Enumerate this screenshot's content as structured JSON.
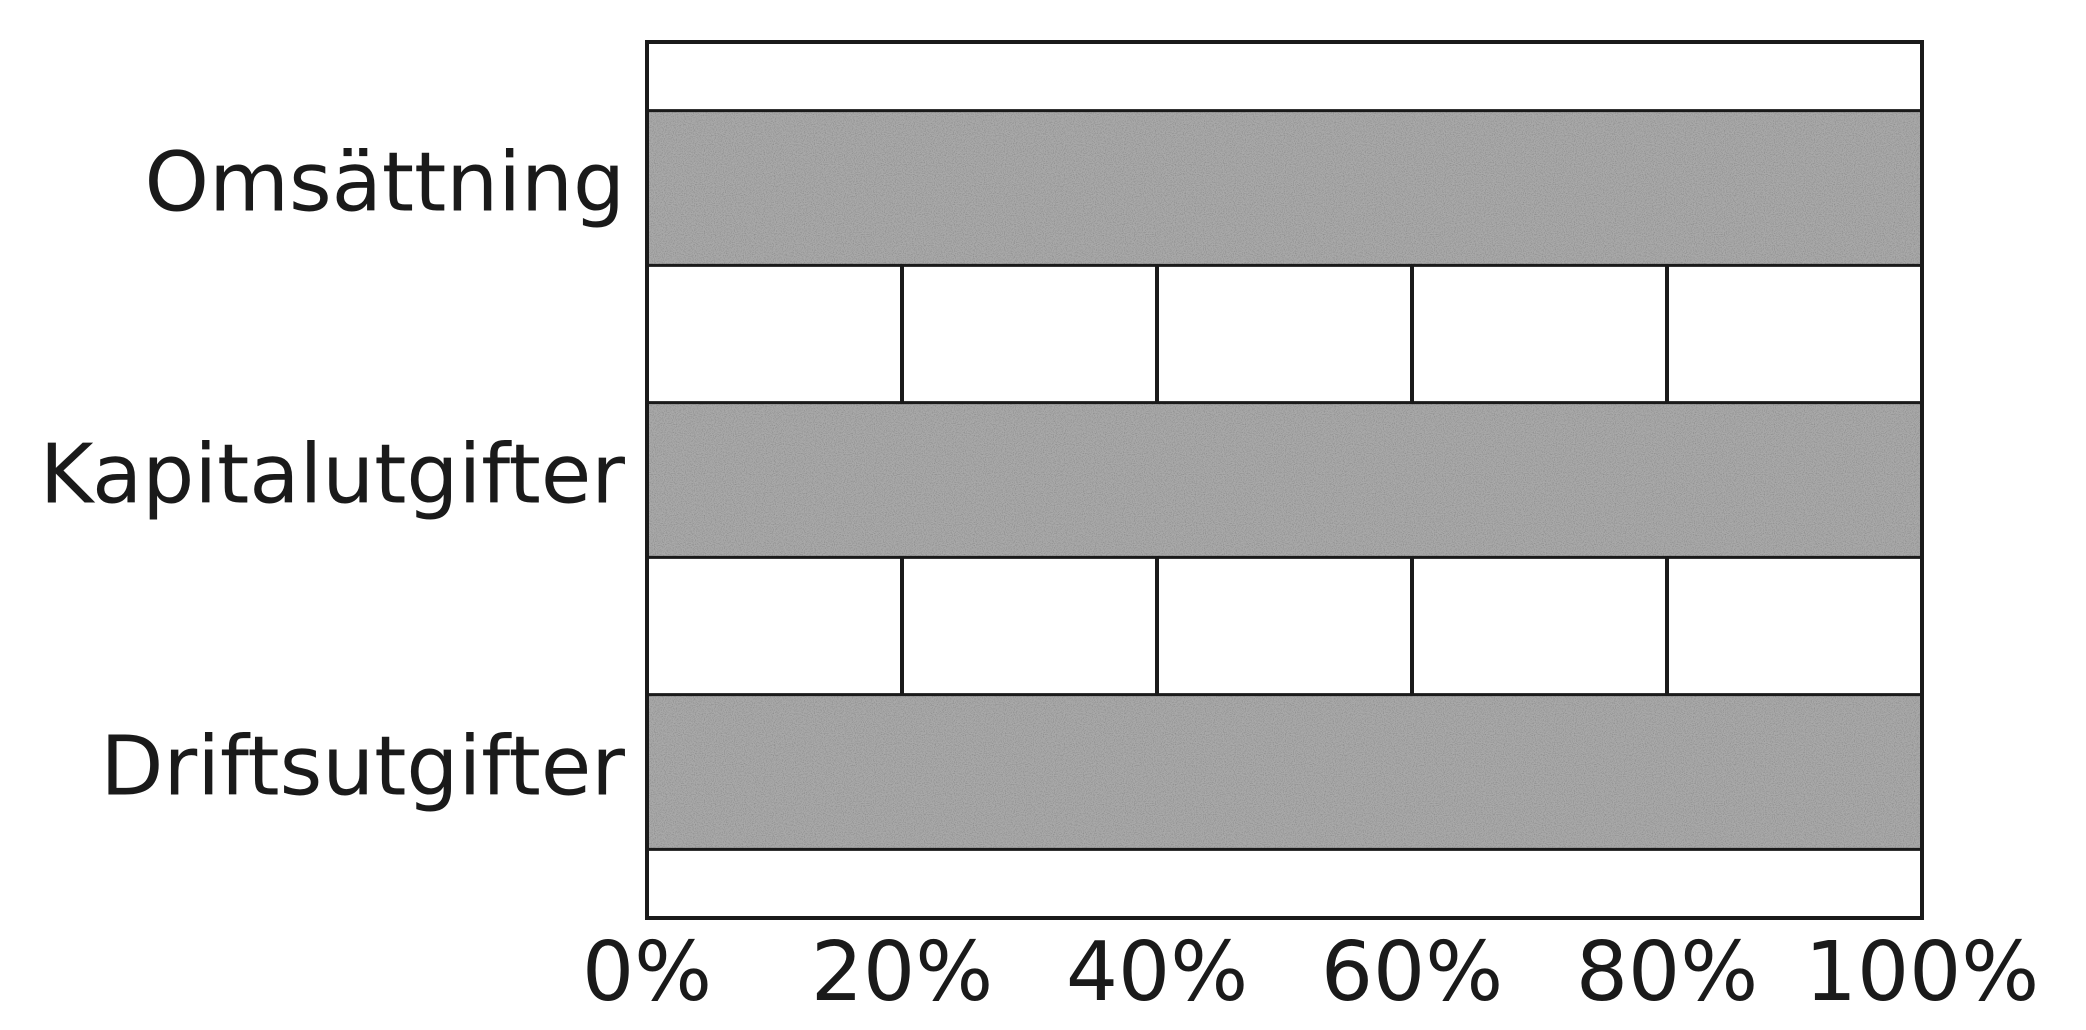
{
  "chart_data": {
    "type": "bar",
    "orientation": "horizontal",
    "stacked": "100%",
    "categories": [
      "Omsättning",
      "Kapitalutgifter",
      "Driftsutgifter"
    ],
    "values": [
      100,
      100,
      100
    ],
    "xlim": [
      0,
      100
    ],
    "x_ticks": [
      0,
      20,
      40,
      60,
      80,
      100
    ],
    "x_tick_labels": [
      "0%",
      "20%",
      "40%",
      "60%",
      "80%",
      "100%"
    ],
    "bar_fill": "stippled gray",
    "grid": true,
    "legend": "none",
    "title": "",
    "xlabel": "",
    "ylabel": ""
  },
  "colors": {
    "bar_fill": "#a9a9a9",
    "stipple_dark": "#6e6e6e",
    "axis": "#1a1a1a",
    "background": "#ffffff"
  }
}
